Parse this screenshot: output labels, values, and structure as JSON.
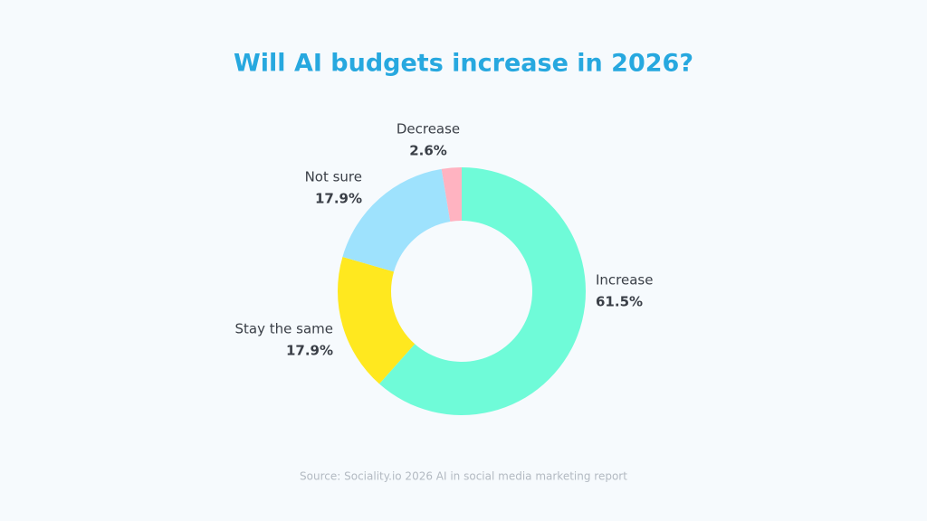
{
  "chart_data": {
    "type": "donut",
    "title": "Will AI budgets increase in 2026?",
    "categories": [
      "Increase",
      "Stay the same",
      "Not sure",
      "Decrease"
    ],
    "values": [
      61.5,
      17.9,
      17.9,
      2.6
    ],
    "value_labels": [
      "61.5%",
      "17.9%",
      "17.9%",
      "2.6%"
    ],
    "colors": [
      "#6ffbd8",
      "#ffe81f",
      "#9ee2fd",
      "#ffb3c1"
    ],
    "source": "Source: Sociality.io 2026 AI in social media marketing report"
  }
}
